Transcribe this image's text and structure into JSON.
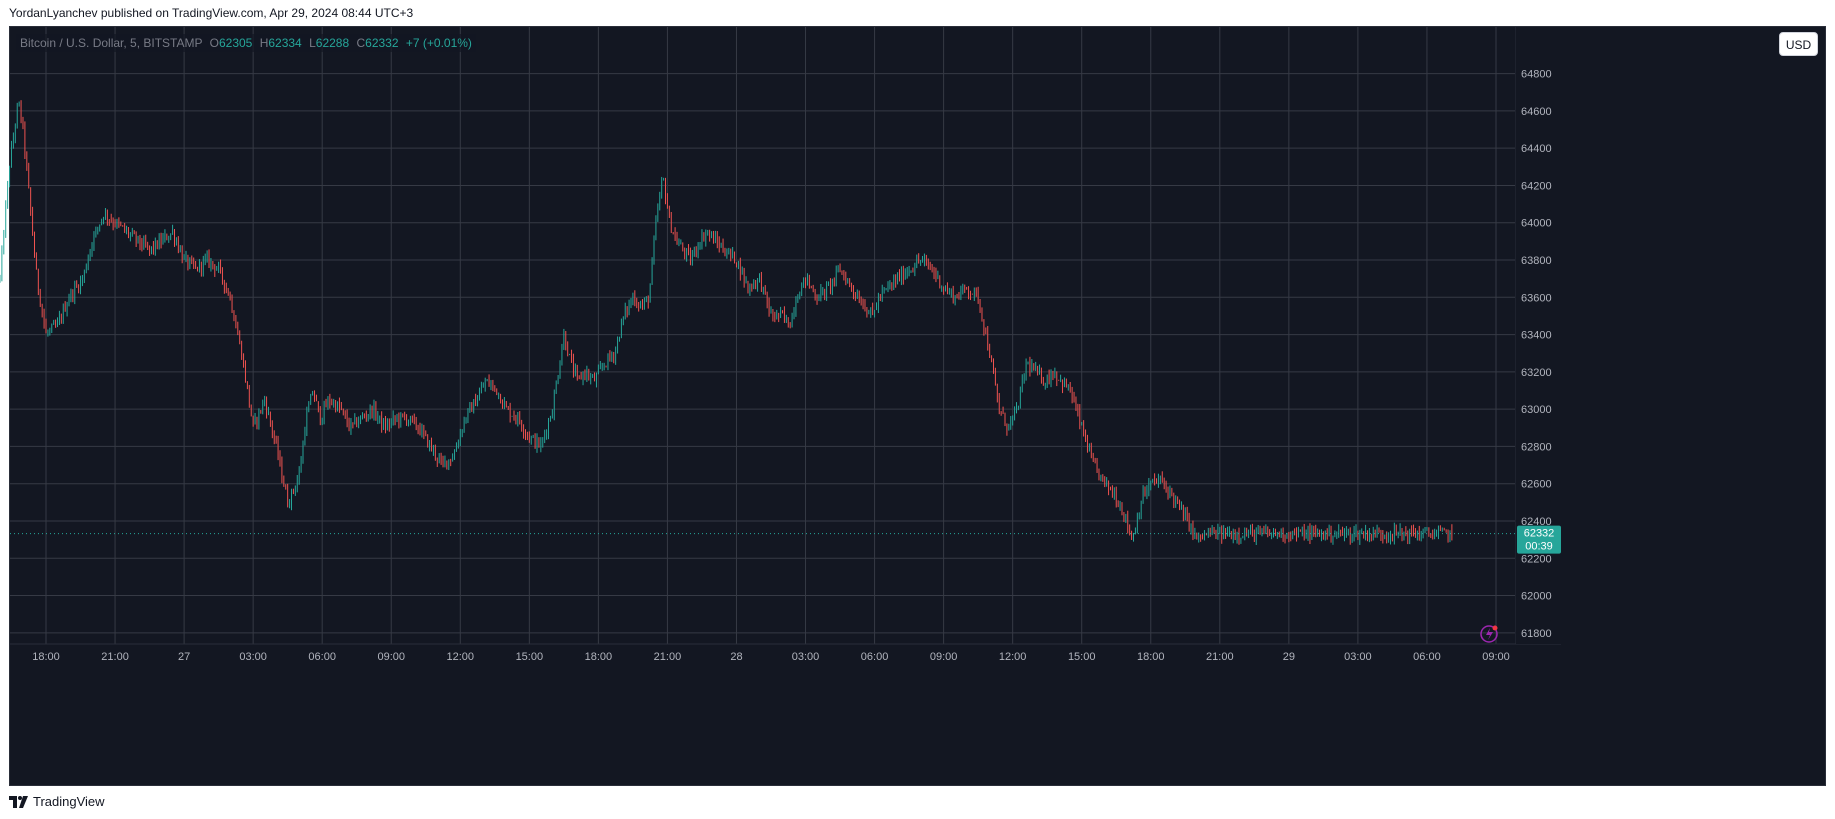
{
  "header": {
    "published_text": "YordanLyanchev published on TradingView.com, Apr 29, 2024 08:44 UTC+3"
  },
  "legend": {
    "symbol": "Bitcoin / U.S. Dollar, 5, BITSTAMP",
    "open_label": "O",
    "open": "62305",
    "high_label": "H",
    "high": "62334",
    "low_label": "L",
    "low": "62288",
    "close_label": "C",
    "close": "62332",
    "change": "+7 (+0.01%)"
  },
  "currency_button": "USD",
  "price_tag": {
    "price": "62332",
    "countdown": "00:39"
  },
  "footer": {
    "brand": "TradingView"
  },
  "colors": {
    "background": "#131722",
    "grid": "#363a45",
    "up": "#26a69a",
    "down": "#ef5350",
    "axis_text": "#b2b5be",
    "price_line": "#26a69a"
  },
  "chart_data": {
    "type": "candlestick",
    "title": "Bitcoin / U.S. Dollar, 5, BITSTAMP",
    "interval": "5",
    "ylim": [
      61740,
      65050
    ],
    "y_ticks": [
      61800,
      62000,
      62200,
      62400,
      62600,
      62800,
      63000,
      63200,
      63400,
      63600,
      63800,
      64000,
      64200,
      64400,
      64600,
      64800
    ],
    "x_ticks": [
      "18:00",
      "21:00",
      "27",
      "03:00",
      "06:00",
      "09:00",
      "12:00",
      "15:00",
      "18:00",
      "21:00",
      "28",
      "03:00",
      "06:00",
      "09:00",
      "12:00",
      "15:00",
      "18:00",
      "21:00",
      "29",
      "03:00",
      "06:00",
      "09:00"
    ],
    "x_tick_hours": [
      2,
      5,
      8,
      11,
      14,
      17,
      20,
      23,
      26,
      29,
      32,
      35,
      38,
      41,
      44,
      47,
      50,
      53,
      56,
      59,
      62,
      65
    ],
    "last_price": 62332,
    "series_path_hours": [
      0,
      0.4,
      0.8,
      1.0,
      1.3,
      1.6,
      2.0,
      2.5,
      3.0,
      3.6,
      4.0,
      4.5,
      5.0,
      5.5,
      6.0,
      6.5,
      7.0,
      7.5,
      8.0,
      8.5,
      9.0,
      9.5,
      10.0,
      10.5,
      11.0,
      11.5,
      12.0,
      12.5,
      12.7,
      13.0,
      13.3,
      13.6,
      13.9,
      14.3,
      14.8,
      15.2,
      15.7,
      16.2,
      16.7,
      17.2,
      17.7,
      18.2,
      18.7,
      19.2,
      19.7,
      20.2,
      20.7,
      21.1,
      21.6,
      22.0,
      22.5,
      23.0,
      23.5,
      24.0,
      24.5,
      24.8,
      25.1,
      25.4,
      25.8,
      26.3,
      26.7,
      27.1,
      27.5,
      27.9,
      28.2,
      28.5,
      28.8,
      29.1,
      29.4,
      29.7,
      30.0,
      30.4,
      30.7,
      31.1,
      31.5,
      32.0,
      32.5,
      33.0,
      33.5,
      34.0,
      34.3,
      34.6,
      35.0,
      35.5,
      36.0,
      36.5,
      37.0,
      37.3,
      37.6,
      37.9,
      38.2,
      38.6,
      39.0,
      39.5,
      40.0,
      40.5,
      41.0,
      41.5,
      42.0,
      42.5,
      43.0,
      43.4,
      43.8,
      44.2,
      44.6,
      45.0,
      45.4,
      45.8,
      46.1,
      46.5,
      47.0,
      47.5,
      48.0,
      48.4,
      48.8,
      49.2,
      49.6,
      50.0,
      50.4,
      50.8,
      51.2,
      51.6,
      52.0,
      52.5,
      53.0,
      53.5,
      54.0,
      54.3,
      54.6,
      55.0,
      55.5,
      56.0,
      56.5,
      56.9,
      57.3,
      57.6,
      57.9,
      58.2,
      58.5,
      58.8,
      59.1,
      59.5,
      59.9,
      60.3,
      60.7,
      61.1,
      61.5,
      61.9,
      62.3,
      62.7,
      63.1,
      63.5,
      63.9,
      64.3,
      64.7
    ],
    "series_path_prices": [
      63700,
      64300,
      64650,
      64500,
      64100,
      63700,
      63400,
      63450,
      63600,
      63700,
      63900,
      64050,
      64000,
      63950,
      63900,
      63850,
      63900,
      63950,
      63800,
      63750,
      63800,
      63750,
      63600,
      63300,
      62900,
      63050,
      62800,
      62500,
      62550,
      62650,
      62950,
      63100,
      62950,
      63050,
      63000,
      62900,
      62950,
      63000,
      62900,
      62950,
      62950,
      62900,
      62800,
      62700,
      62750,
      62950,
      63050,
      63150,
      63100,
      63000,
      62950,
      62850,
      62800,
      63000,
      63400,
      63250,
      63150,
      63200,
      63150,
      63250,
      63300,
      63500,
      63600,
      63550,
      63600,
      64000,
      64250,
      64000,
      63900,
      63850,
      63800,
      63900,
      63950,
      63900,
      63850,
      63800,
      63650,
      63700,
      63500,
      63500,
      63450,
      63600,
      63700,
      63600,
      63650,
      63750,
      63650,
      63600,
      63550,
      63500,
      63600,
      63650,
      63700,
      63750,
      63800,
      63750,
      63650,
      63600,
      63650,
      63600,
      63300,
      63000,
      62900,
      63000,
      63250,
      63200,
      63150,
      63200,
      63150,
      63100,
      62900,
      62700,
      62600,
      62550,
      62450,
      62300,
      62520,
      62600,
      62620,
      62560,
      62480,
      62400,
      62300,
      62332,
      62332,
      62332,
      62332,
      62332,
      62332,
      62332,
      62332,
      62332,
      62332,
      62332,
      62332,
      62332,
      62332,
      62332,
      62332,
      62332,
      62332,
      62332,
      62332,
      62332,
      62332,
      62332,
      62332,
      62332,
      62332,
      62332,
      62332
    ],
    "note_series": "Close path of 5-minute candles; total span about 65 hours"
  }
}
